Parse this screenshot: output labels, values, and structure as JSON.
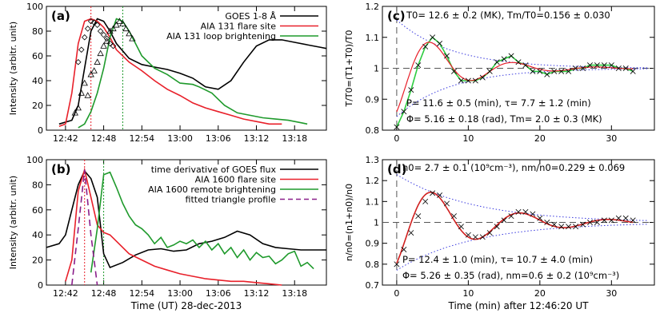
{
  "chart_data": [
    {
      "panel": "(a)",
      "type": "line",
      "ylabel": "Intensity (arbitr. unit)",
      "ylim": [
        0,
        100
      ],
      "y_ticks": [
        0,
        20,
        40,
        60,
        80,
        100
      ],
      "xlim": [
        "12:39",
        "13:23"
      ],
      "x_ticks": [
        "12:42",
        "12:48",
        "12:54",
        "13:00",
        "13:06",
        "13:12",
        "13:18"
      ],
      "series": [
        {
          "name": "GOES 1-8 Å",
          "color": "#000000",
          "x": [
            "12:41",
            "12:43",
            "12:44",
            "12:45",
            "12:46",
            "12:47",
            "12:48",
            "12:49",
            "12:50",
            "12:52",
            "12:54",
            "12:56",
            "12:58",
            "13:00",
            "13:02",
            "13:04",
            "13:06",
            "13:08",
            "13:10",
            "13:12",
            "13:14",
            "13:16",
            "13:18",
            "13:20",
            "13:22",
            "13:23"
          ],
          "values": [
            5,
            8,
            20,
            50,
            80,
            90,
            88,
            80,
            70,
            58,
            53,
            51,
            49,
            46,
            42,
            35,
            33,
            40,
            55,
            68,
            73,
            73,
            71,
            69,
            67,
            66
          ]
        },
        {
          "name": "AIA 131 flare site",
          "color": "#e8202a",
          "x": [
            "12:41",
            "12:42",
            "12:43",
            "12:44",
            "12:45",
            "12:46",
            "12:47",
            "12:48",
            "12:49",
            "12:50",
            "12:52",
            "12:54",
            "12:56",
            "12:58",
            "13:00",
            "13:02",
            "13:04",
            "13:06",
            "13:08",
            "13:10",
            "13:12",
            "13:14",
            "13:16"
          ],
          "values": [
            3,
            5,
            30,
            70,
            88,
            90,
            88,
            83,
            75,
            65,
            55,
            48,
            40,
            33,
            28,
            22,
            18,
            15,
            12,
            9,
            7,
            5,
            5
          ]
        },
        {
          "name": "AIA 131 loop brightening",
          "color": "#1f9a2c",
          "x": [
            "12:44",
            "12:45",
            "12:46",
            "12:47",
            "12:48",
            "12:49",
            "12:50",
            "12:51",
            "12:52",
            "12:53",
            "12:54",
            "12:56",
            "12:58",
            "13:00",
            "13:02",
            "13:03",
            "13:05",
            "13:07",
            "13:09",
            "13:11",
            "13:13",
            "13:15",
            "13:17",
            "13:19",
            "13:20"
          ],
          "values": [
            2,
            5,
            15,
            30,
            50,
            75,
            90,
            88,
            80,
            70,
            60,
            50,
            45,
            38,
            37,
            35,
            30,
            20,
            14,
            12,
            10,
            9,
            8,
            6,
            5
          ]
        }
      ],
      "markers": {
        "diamonds": {
          "x": [
            "12:44:00",
            "12:44:30",
            "12:45:00",
            "12:45:30",
            "12:46:00",
            "12:46:30",
            "12:47:00",
            "12:47:30",
            "12:48:00",
            "12:48:30",
            "12:49:00",
            "12:49:30"
          ],
          "values": [
            55,
            65,
            75,
            82,
            88,
            87,
            85,
            80,
            77,
            74,
            70,
            68
          ]
        },
        "triangles": {
          "x": [
            "12:43:30",
            "12:44:00",
            "12:44:30",
            "12:45:00",
            "12:45:30",
            "12:46:00",
            "12:46:30",
            "12:47:00",
            "12:47:30",
            "12:48:00",
            "12:48:30",
            "12:49:00",
            "12:49:30",
            "12:50:00",
            "12:50:30",
            "12:51:00",
            "12:51:30",
            "12:52:00",
            "12:52:30"
          ],
          "values": [
            14,
            18,
            30,
            38,
            28,
            45,
            48,
            55,
            62,
            68,
            72,
            80,
            82,
            85,
            88,
            86,
            82,
            78,
            74
          ]
        }
      },
      "vlines": [
        {
          "x": "12:46",
          "color": "#e8202a"
        },
        {
          "x": "12:51",
          "color": "#1f9a2c"
        }
      ]
    },
    {
      "panel": "(b)",
      "type": "line",
      "ylabel": "Intensity (arbitr. unit)",
      "xlabel": "Time (UT) 28-dec-2013",
      "ylim": [
        0,
        100
      ],
      "y_ticks": [
        0,
        20,
        40,
        60,
        80,
        100
      ],
      "xlim": [
        "12:39",
        "13:23"
      ],
      "x_ticks": [
        "12:42",
        "12:48",
        "12:54",
        "13:00",
        "13:06",
        "13:12",
        "13:18"
      ],
      "series": [
        {
          "name": "time derivative of GOES flux",
          "color": "#000000",
          "x": [
            "12:39",
            "12:41",
            "12:42",
            "12:43",
            "12:44",
            "12:45",
            "12:46",
            "12:47",
            "12:48",
            "12:49",
            "12:51",
            "12:53",
            "12:55",
            "12:57",
            "12:59",
            "13:01",
            "13:03",
            "13:05",
            "13:07",
            "13:09",
            "13:11",
            "13:13",
            "13:15",
            "13:17",
            "13:19",
            "13:21",
            "13:23"
          ],
          "values": [
            30,
            33,
            40,
            60,
            80,
            91,
            85,
            70,
            25,
            14,
            18,
            24,
            28,
            29,
            27,
            28,
            33,
            35,
            38,
            43,
            40,
            33,
            30,
            29,
            28,
            28,
            28
          ]
        },
        {
          "name": "AIA 1600 flare site",
          "color": "#e8202a",
          "x": [
            "12:42",
            "12:43",
            "12:44",
            "12:45",
            "12:46",
            "12:47",
            "12:48",
            "12:49",
            "12:50",
            "12:52",
            "12:54",
            "12:56",
            "12:58",
            "13:00",
            "13:02",
            "13:04",
            "13:06",
            "13:08",
            "13:10",
            "13:12",
            "13:14",
            "13:16"
          ],
          "values": [
            3,
            20,
            75,
            92,
            70,
            48,
            42,
            40,
            35,
            25,
            20,
            15,
            12,
            9,
            7,
            5,
            4,
            3,
            3,
            2,
            1,
            0
          ]
        },
        {
          "name": "AIA 1600 remote brightening",
          "color": "#1f9a2c",
          "x": [
            "12:46",
            "12:47",
            "12:48",
            "12:49",
            "12:50",
            "12:51",
            "12:52",
            "12:53",
            "12:54",
            "12:55",
            "12:56",
            "12:57",
            "12:58",
            "12:59",
            "13:00",
            "13:01",
            "13:02",
            "13:03",
            "13:04",
            "13:05",
            "13:06",
            "13:07",
            "13:08",
            "13:09",
            "13:10",
            "13:11",
            "13:12",
            "13:13",
            "13:14",
            "13:15",
            "13:16",
            "13:17",
            "13:18",
            "13:19",
            "13:20",
            "13:21"
          ],
          "values": [
            10,
            45,
            88,
            90,
            78,
            65,
            55,
            48,
            45,
            40,
            33,
            38,
            30,
            32,
            35,
            33,
            36,
            30,
            35,
            28,
            33,
            25,
            30,
            22,
            28,
            20,
            26,
            22,
            23,
            17,
            20,
            25,
            27,
            15,
            18,
            13
          ]
        },
        {
          "name": "fitted triangle profile",
          "color": "#8a1f8a",
          "dashed": true,
          "x": [
            "12:43",
            "12:44",
            "12:45",
            "12:46",
            "12:47"
          ],
          "values": [
            0,
            45,
            92,
            40,
            0
          ]
        }
      ],
      "vlines": [
        {
          "x": "12:45",
          "color": "#e8202a"
        },
        {
          "x": "12:48",
          "color": "#1f9a2c"
        }
      ]
    },
    {
      "panel": "(c)",
      "type": "line",
      "ylabel": "T/T0=(T1+T0)/T0",
      "ylim": [
        0.8,
        1.2
      ],
      "y_ticks": [
        0.8,
        0.9,
        1.0,
        1.1,
        1.2
      ],
      "xlim": [
        -2,
        36
      ],
      "x_ticks": [
        0,
        10,
        20,
        30
      ],
      "annotations": [
        "T0= 12.6 ± 0.2 (MK),  Tm/T0=0.156 ± 0.030",
        "P= 11.6 ± 0.5 (min),    τ= 7.7 ± 1.2 (min)",
        "Φ= 5.16 ± 0.18 (rad),  Tm= 2.0 ± 0.3 (MK)"
      ],
      "fit": {
        "amp": 0.156,
        "period": 11.6,
        "tau": 7.7,
        "phase": 5.16
      },
      "envelope_tau": 7.7,
      "data": {
        "x": [
          0,
          1,
          2,
          3,
          4,
          5,
          6,
          7,
          8,
          9,
          10,
          11,
          12,
          13,
          14,
          15,
          16,
          17,
          18,
          19,
          20,
          21,
          22,
          23,
          24,
          25,
          26,
          27,
          28,
          29,
          30,
          31,
          32,
          33
        ],
        "values": [
          0.81,
          0.86,
          0.93,
          1.01,
          1.07,
          1.1,
          1.08,
          1.04,
          0.99,
          0.96,
          0.96,
          0.96,
          0.97,
          0.99,
          1.02,
          1.03,
          1.04,
          1.02,
          1.01,
          0.99,
          0.99,
          0.98,
          0.99,
          0.99,
          0.99,
          1.0,
          1.0,
          1.01,
          1.01,
          1.01,
          1.01,
          1.0,
          1.0,
          0.99
        ]
      },
      "refline": 1.0
    },
    {
      "panel": "(d)",
      "type": "line",
      "ylabel": "n/n0=(n1+n0)/n0",
      "xlabel": "Time (min) after 12:46:20 UT",
      "ylim": [
        0.7,
        1.3
      ],
      "y_ticks": [
        0.7,
        0.8,
        0.9,
        1.0,
        1.1,
        1.2,
        1.3
      ],
      "xlim": [
        -2,
        36
      ],
      "x_ticks": [
        0,
        10,
        20,
        30
      ],
      "annotations": [
        "n0= 2.7 ± 0.1 (10⁹cm⁻³),  nm/n0=0.229 ± 0.069",
        "P= 12.4 ± 1.0 (min),    τ= 10.7 ± 4.0 (min)",
        "Φ= 5.26 ± 0.35 (rad),  nm=0.6 ± 0.2 (10⁹cm⁻³)"
      ],
      "fit": {
        "amp": 0.229,
        "period": 12.4,
        "tau": 10.7,
        "phase": 5.26
      },
      "envelope_tau": 10.7,
      "data": {
        "x": [
          0,
          1,
          2,
          3,
          4,
          5,
          6,
          7,
          8,
          9,
          10,
          11,
          12,
          13,
          14,
          15,
          16,
          17,
          18,
          19,
          20,
          21,
          22,
          23,
          24,
          25,
          26,
          27,
          28,
          29,
          30,
          31,
          32,
          33
        ],
        "values": [
          0.8,
          0.87,
          0.95,
          1.03,
          1.1,
          1.14,
          1.13,
          1.09,
          1.03,
          0.98,
          0.94,
          0.93,
          0.93,
          0.95,
          0.98,
          1.01,
          1.03,
          1.05,
          1.05,
          1.04,
          1.02,
          1.0,
          0.99,
          0.98,
          0.98,
          0.98,
          0.99,
          1.0,
          1.0,
          1.01,
          1.01,
          1.02,
          1.02,
          1.01
        ]
      },
      "refline": 1.0
    }
  ],
  "legend_a": [
    "GOES 1-8 Å",
    "AIA 131 flare site",
    "AIA 131 loop brightening"
  ],
  "legend_b": [
    "time derivative of GOES flux",
    "AIA 1600 flare site",
    "AIA 1600 remote brightening",
    "fitted triangle profile"
  ]
}
